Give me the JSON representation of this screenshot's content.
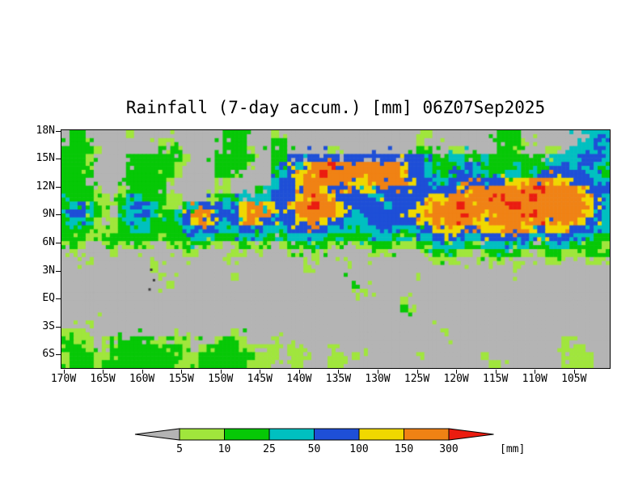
{
  "title": "Rainfall (7-day accum.) [mm] 06Z07Sep2025",
  "axes": {
    "y_ticks": [
      "18N",
      "15N",
      "12N",
      "9N",
      "6N",
      "3N",
      "EQ",
      "3S",
      "6S"
    ],
    "x_ticks": [
      "170W",
      "165W",
      "160W",
      "155W",
      "150W",
      "145W",
      "140W",
      "135W",
      "130W",
      "125W",
      "120W",
      "115W",
      "110W",
      "105W"
    ]
  },
  "colorbar": {
    "labels": [
      "5",
      "10",
      "25",
      "50",
      "100",
      "150",
      "300"
    ],
    "units_label": "[mm]"
  },
  "chart_data": {
    "type": "heatmap",
    "title": "Rainfall (7-day accum.) [mm] 06Z07Sep2025",
    "units": "mm",
    "timestamp": "06Z07Sep2025",
    "x_tick_labels": [
      "170W",
      "165W",
      "160W",
      "155W",
      "150W",
      "145W",
      "140W",
      "135W",
      "130W",
      "125W",
      "120W",
      "115W",
      "110W",
      "105W"
    ],
    "y_tick_labels": [
      "18N",
      "15N",
      "12N",
      "9N",
      "6N",
      "3N",
      "EQ",
      "3S",
      "6S"
    ],
    "thresholds_mm": [
      5,
      10,
      25,
      50,
      100,
      150,
      300
    ],
    "level_meaning": {
      "0": "<5",
      "1": "5-10",
      "2": "10-25",
      "3": "25-50",
      "4": "50-100",
      "5": "100-150",
      "6": "150-300",
      "7": ">300"
    },
    "level_colors": {
      "0": "#b4b4b4",
      "1": "#a0e63c",
      "2": "#06c806",
      "3": "#00c0c0",
      "4": "#1e4fd7",
      "5": "#f0d800",
      "6": "#f08214",
      "7": "#eb1c10"
    },
    "background_color": "#b4b4b4",
    "grid": {
      "cols": 68,
      "rows": 30,
      "rows_data": [
        "02200000100000000000222000100000000000000000110000000022200000000333",
        "02220000000011000000222000220000000000000000100000000022210000003343",
        "22221000000022200000222100220000011000000000220011000022200011033443",
        "22210000222222210002222200224444444444444444432233223222222233334443",
        "22210000222222100002222100244356676666666654432223432222322234434432",
        "22220000222222100002220000234566766666666654433234433223323444444332",
        "22200000222221000001100000344566666655666665443344444445556665544433",
        "22221001222220000001100023444566544445544444444445666666666766665544",
        "22221102332221100012223333444566654444334444455566666676667666665543",
        "23432102344321123444345665445667665444443444556667666667766666666543",
        "34432102344322346664445666544666665434444445566667665666667666666543",
        "23321012333222345654345654344566544333444444556666655666666656665443",
        "22221112233222234443334443334444433333344333445555445556655455544433",
        "22211222222212223332223332223333322222333222334444334444443344433322",
        "12100121121001122211012221012222211011222111223333223333332233322221",
        "01000010010000011000011010001101100000111000112221101222210122111222",
        "00010000000100000000100000000001000100000000001110000110100011000110",
        "00000000000100000000000000000010000000000000000000100000100000000000",
        "00000000000010000000010000000000000000000000100000000000000000000000",
        "00000000000001000000000000000000000020000000000000000000000000000000",
        "00000000000000000000000000000000000011000000000000000000000000000000",
        "00000000000000000000000000000000000000000010000000000000000000000000",
        "00000000000000000000000000000000000000000021000000000000000000000000",
        "00000000000000000000000000000000000000000000000000000000000000000000",
        "00010000000000000000000000000000000000000000000000000000000000000000",
        "11100000000000000000010000000000000000000000000100000000000000000000",
        "22110122222110110001221000100000000000000000000000000000000000100000",
        "22210122222222210122221111101100010000000000000000000000000000111000",
        "12221122222222211222222211101110011010000000100000001000000000111100",
        "12221222222222111222222111001100011000000000000000000110000000111100"
      ]
    },
    "dark_specks": [
      {
        "fx": 0.163,
        "fy": 0.585
      },
      {
        "fx": 0.168,
        "fy": 0.629
      },
      {
        "fx": 0.16,
        "fy": 0.668
      }
    ]
  }
}
